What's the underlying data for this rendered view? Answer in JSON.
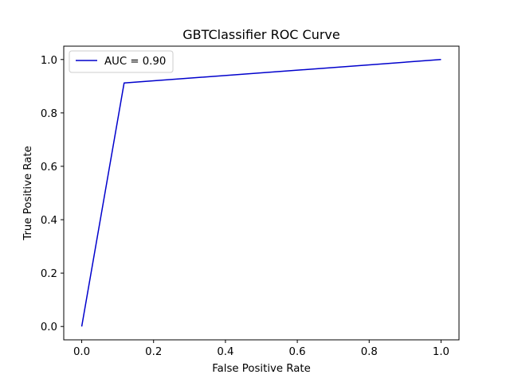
{
  "chart_data": {
    "type": "line",
    "title": "GBTClassifier ROC Curve",
    "xlabel": "False Positive Rate",
    "ylabel": "True Positive Rate",
    "xlim": [
      -0.05,
      1.05
    ],
    "ylim": [
      -0.05,
      1.05
    ],
    "x_ticks": [
      0.0,
      0.2,
      0.4,
      0.6,
      0.8,
      1.0
    ],
    "y_ticks": [
      0.0,
      0.2,
      0.4,
      0.6,
      0.8,
      1.0
    ],
    "x_tick_labels": [
      "0.0",
      "0.2",
      "0.4",
      "0.6",
      "0.8",
      "1.0"
    ],
    "y_tick_labels": [
      "0.0",
      "0.2",
      "0.4",
      "0.6",
      "0.8",
      "1.0"
    ],
    "grid": false,
    "legend": {
      "placement": "top-left"
    },
    "series": [
      {
        "name": "AUC = 0.90",
        "color": "#0000cc",
        "x": [
          0.0,
          0.118,
          1.0
        ],
        "y": [
          0.0,
          0.912,
          1.0
        ]
      }
    ]
  }
}
